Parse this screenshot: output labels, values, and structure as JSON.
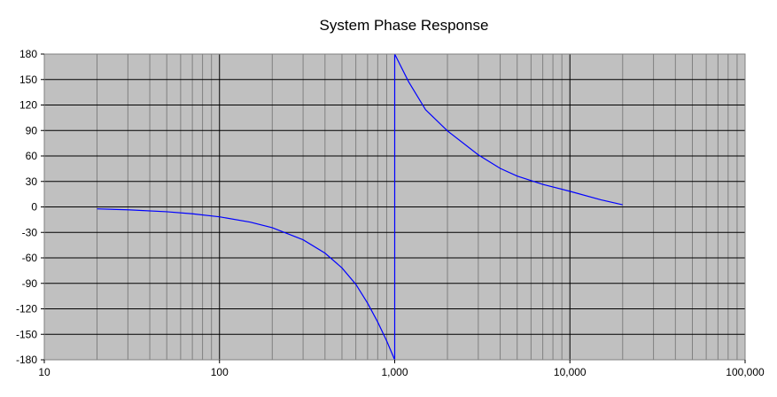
{
  "chart_data": {
    "type": "line",
    "title": "System Phase Response",
    "xlabel": "",
    "ylabel": "",
    "x_scale": "log",
    "xlim": [
      10,
      100000
    ],
    "ylim": [
      -180,
      180
    ],
    "x_ticks": [
      10,
      100,
      1000,
      10000,
      100000
    ],
    "x_tick_labels": [
      "10",
      "100",
      "1,000",
      "10,000",
      "100,000"
    ],
    "y_ticks": [
      180,
      150,
      120,
      90,
      60,
      30,
      0,
      -30,
      -60,
      -90,
      -120,
      -150,
      -180
    ],
    "y_tick_labels": [
      "180",
      "150",
      "120",
      "90",
      "60",
      "30",
      "0",
      "-30",
      "-60",
      "-90",
      "-120",
      "-150",
      "-180"
    ],
    "grid": true,
    "legend": "none",
    "colors": {
      "plot_background": "#c0c0c0",
      "major_grid": "#000000",
      "minor_grid": "#808080",
      "series": "#0000ff"
    },
    "series": [
      {
        "name": "",
        "x": [
          20,
          30,
          50,
          70,
          100,
          150,
          200,
          300,
          400,
          500,
          600,
          700,
          800,
          900,
          1000,
          1000,
          1200,
          1500,
          2000,
          3000,
          4000,
          5000,
          7000,
          10000,
          15000,
          20000
        ],
        "y": [
          -2.3,
          -3.4,
          -5.7,
          -8.1,
          -11.7,
          -17.9,
          -24.5,
          -38.7,
          -54.4,
          -71.8,
          -91.1,
          -113.3,
          -135.6,
          -157.8,
          -180,
          180,
          147.5,
          114.5,
          89.5,
          61.3,
          45.4,
          36.3,
          26.5,
          18.4,
          8.4,
          2.5
        ]
      }
    ]
  }
}
